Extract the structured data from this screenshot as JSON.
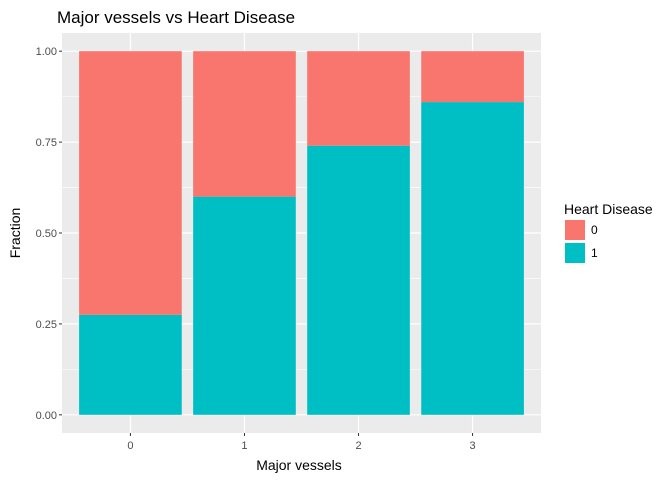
{
  "chart_data": {
    "type": "bar",
    "stacked": true,
    "title": "Major vessels vs Heart Disease",
    "xlabel": "Major vessels",
    "ylabel": "Fraction",
    "categories": [
      "0",
      "1",
      "2",
      "3"
    ],
    "series": [
      {
        "name": "0",
        "values": [
          0.725,
          0.4,
          0.26,
          0.14
        ],
        "color": "#F8766D"
      },
      {
        "name": "1",
        "values": [
          0.275,
          0.6,
          0.74,
          0.86
        ],
        "color": "#00BFC4"
      }
    ],
    "stack_order_bottom_to_top": [
      "1",
      "0"
    ],
    "ylim": [
      0,
      1
    ],
    "yticks": [
      "0.00",
      "0.25",
      "0.50",
      "0.75",
      "1.00"
    ],
    "grid": true,
    "legend": {
      "title": "Heart Disease",
      "placement": "right",
      "items": [
        "0",
        "1"
      ]
    }
  },
  "colors": {
    "panel_background": "#EBEBEB",
    "grid": "#FFFFFF",
    "tick_text": "#4D4D4D"
  }
}
